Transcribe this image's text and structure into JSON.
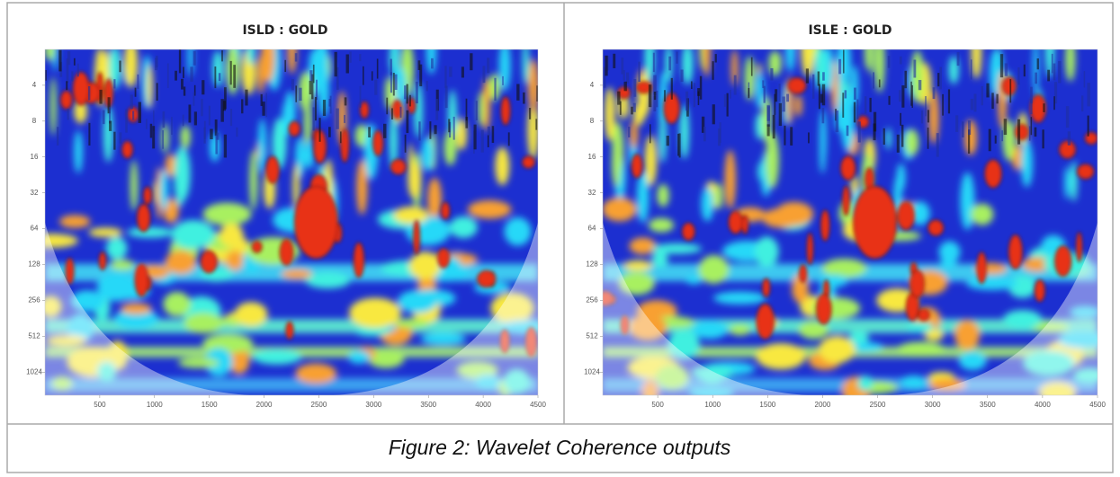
{
  "panels": [
    {
      "title": "ISLD : GOLD",
      "yscale": "log",
      "ylim": [
        2,
        1600
      ],
      "yticks": [
        4,
        8,
        16,
        32,
        64,
        128,
        256,
        512,
        1024
      ],
      "xlim": [
        0,
        4500
      ],
      "xticks": [
        500,
        1000,
        1500,
        2000,
        2500,
        3000,
        3500,
        4000,
        4500
      ]
    },
    {
      "title": "ISLE : GOLD",
      "yscale": "log",
      "ylim": [
        2,
        1600
      ],
      "yticks": [
        4,
        8,
        16,
        32,
        64,
        128,
        256,
        512,
        1024
      ],
      "xlim": [
        0,
        4500
      ],
      "xticks": [
        500,
        1000,
        1500,
        2000,
        2500,
        3000,
        3500,
        4000,
        4500
      ]
    }
  ],
  "caption": "Figure 2: Wavelet Coherence outputs"
}
